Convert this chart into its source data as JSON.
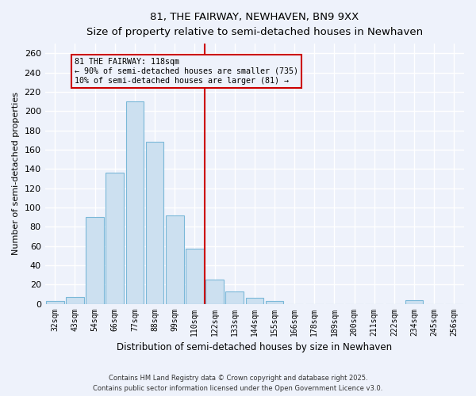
{
  "title": "81, THE FAIRWAY, NEWHAVEN, BN9 9XX",
  "subtitle": "Size of property relative to semi-detached houses in Newhaven",
  "xlabel": "Distribution of semi-detached houses by size in Newhaven",
  "ylabel": "Number of semi-detached properties",
  "categories": [
    "32sqm",
    "43sqm",
    "54sqm",
    "66sqm",
    "77sqm",
    "88sqm",
    "99sqm",
    "110sqm",
    "122sqm",
    "133sqm",
    "144sqm",
    "155sqm",
    "166sqm",
    "178sqm",
    "189sqm",
    "200sqm",
    "211sqm",
    "222sqm",
    "234sqm",
    "245sqm",
    "256sqm"
  ],
  "values": [
    3,
    7,
    90,
    136,
    210,
    168,
    92,
    57,
    25,
    13,
    6,
    3,
    0,
    0,
    0,
    0,
    0,
    0,
    4,
    0,
    0
  ],
  "bar_color": "#cce0f0",
  "bar_edge_color": "#7ab8d8",
  "vline_color": "#cc0000",
  "annotation_title": "81 THE FAIRWAY: 118sqm",
  "annotation_line1": "← 90% of semi-detached houses are smaller (735)",
  "annotation_line2": "10% of semi-detached houses are larger (81) →",
  "ylim": [
    0,
    270
  ],
  "yticks": [
    0,
    20,
    40,
    60,
    80,
    100,
    120,
    140,
    160,
    180,
    200,
    220,
    240,
    260
  ],
  "background_color": "#eef2fb",
  "grid_color": "#ffffff",
  "footer1": "Contains HM Land Registry data © Crown copyright and database right 2025.",
  "footer2": "Contains public sector information licensed under the Open Government Licence v3.0."
}
